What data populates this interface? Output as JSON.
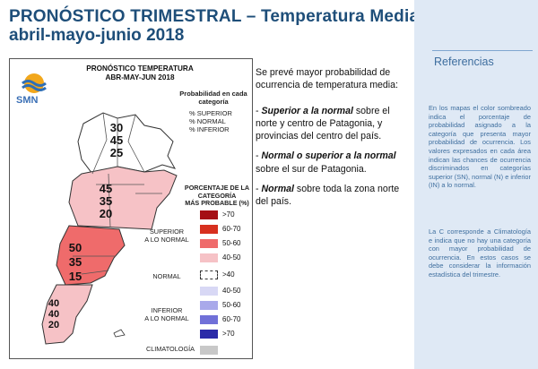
{
  "header": {
    "title_line1": "PRONÓSTICO TRIMESTRAL – Temperatura Media",
    "title_line2": "abril-mayo-junio 2018"
  },
  "map": {
    "title_line1": "PRONÓSTICO TEMPERATURA",
    "title_line2": "ABR-MAY-JUN 2018",
    "logo_text": "SMN",
    "prob_header_line1": "Probabilidad en cada",
    "prob_header_line2": "categoría",
    "prob_superior": "% SUPERIOR",
    "prob_normal": "% NORMAL",
    "prob_inferior": "% INFERIOR",
    "regions": [
      {
        "name": "norte",
        "values": [
          "30",
          "45",
          "25"
        ]
      },
      {
        "name": "centro",
        "values": [
          "45",
          "35",
          "20"
        ]
      },
      {
        "name": "patagonia-norte",
        "values": [
          "50",
          "35",
          "15"
        ]
      },
      {
        "name": "patagonia-sur",
        "values": [
          "40",
          "40",
          "20"
        ]
      }
    ],
    "legend": {
      "header_line1": "PORCENTAJE DE LA CATEGORÍA",
      "header_line2": "MÁS PROBABLE (%)",
      "group_superior_line1": "SUPERIOR",
      "group_superior_line2": "A LO NORMAL",
      "group_normal": "NORMAL",
      "group_inferior_line1": "INFERIOR",
      "group_inferior_line2": "A LO NORMAL",
      "group_clima": "CLIMATOLOGÍA",
      "items": [
        {
          "label": ">70",
          "color": "#a50f15"
        },
        {
          "label": "60-70",
          "color": "#d7301f"
        },
        {
          "label": "50-60",
          "color": "#ef6b6b"
        },
        {
          "label": "40-50",
          "color": "#f6c2c6"
        },
        {
          "label": ">40",
          "color": "#ffffff"
        },
        {
          "label": "40-50",
          "color": "#d8d8f5"
        },
        {
          "label": "50-60",
          "color": "#a9a9ea"
        },
        {
          "label": "60-70",
          "color": "#7070d8"
        },
        {
          "label": ">70",
          "color": "#2a2aa8"
        },
        {
          "label": "",
          "color": "#c8c8c8"
        }
      ]
    }
  },
  "description": {
    "lead": "Se prevé mayor probabilidad de ocurrencia de temperatura media:",
    "items": [
      {
        "bold": "Superior a la normal",
        "rest": " sobre el norte y centro de Patagonia, y provincias del centro del país."
      },
      {
        "bold": "Normal o superior a la normal",
        "rest": " sobre el sur de Patagonia."
      },
      {
        "bold": "Normal",
        "rest": " sobre toda la zona norte del país."
      }
    ]
  },
  "references": {
    "title": "Referencias",
    "para1": "En los mapas el color sombreado indica el porcentaje de probabilidad asignado a la categoría que presenta mayor probabilidad de ocurrencia. Los valores expresados en cada área indican las chances de ocurrencia discriminados en categorías superior (SN), normal (N) e inferior (IN) a lo normal.",
    "para2": "La C corresponde a Climatología e indica que no hay una categoría con mayor probabilidad de ocurrencia. En estos casos se debe considerar la información estadística del trimestre."
  }
}
